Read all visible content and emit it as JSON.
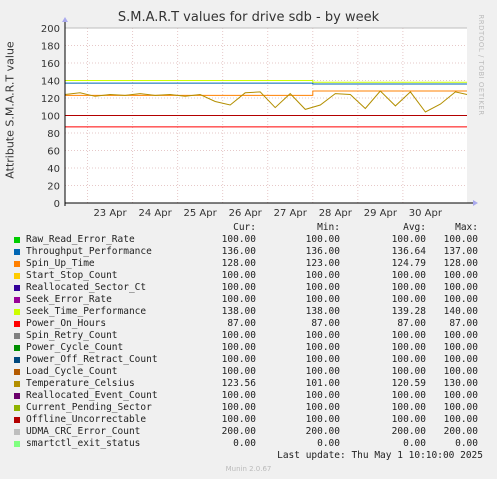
{
  "page": {
    "title": "S.M.A.R.T values for drive sdb - by week",
    "vertical_label": "Attribute S.M.A.R.T value",
    "watermark": "RRDTOOL / TOBI OETIKER",
    "footer": "Munin 2.0.67",
    "last_update": "Last update: Thu May  1 10:10:00 2025"
  },
  "legend": {
    "headers": [
      "Cur:",
      "Min:",
      "Avg:",
      "Max:"
    ],
    "rows": [
      {
        "name": "Raw_Read_Error_Rate",
        "color": "#00cc00",
        "cur": "100.00",
        "min": "100.00",
        "avg": "100.00",
        "max": "100.00"
      },
      {
        "name": "Throughput_Performance",
        "color": "#0066b3",
        "cur": "136.00",
        "min": "136.00",
        "avg": "136.64",
        "max": "137.00"
      },
      {
        "name": "Spin_Up_Time",
        "color": "#ff8000",
        "cur": "128.00",
        "min": "123.00",
        "avg": "124.79",
        "max": "128.00"
      },
      {
        "name": "Start_Stop_Count",
        "color": "#ffcc00",
        "cur": "100.00",
        "min": "100.00",
        "avg": "100.00",
        "max": "100.00"
      },
      {
        "name": "Reallocated_Sector_Ct",
        "color": "#330099",
        "cur": "100.00",
        "min": "100.00",
        "avg": "100.00",
        "max": "100.00"
      },
      {
        "name": "Seek_Error_Rate",
        "color": "#990099",
        "cur": "100.00",
        "min": "100.00",
        "avg": "100.00",
        "max": "100.00"
      },
      {
        "name": "Seek_Time_Performance",
        "color": "#ccff00",
        "cur": "138.00",
        "min": "138.00",
        "avg": "139.28",
        "max": "140.00"
      },
      {
        "name": "Power_On_Hours",
        "color": "#ff0000",
        "cur": "87.00",
        "min": "87.00",
        "avg": "87.00",
        "max": "87.00"
      },
      {
        "name": "Spin_Retry_Count",
        "color": "#808080",
        "cur": "100.00",
        "min": "100.00",
        "avg": "100.00",
        "max": "100.00"
      },
      {
        "name": "Power_Cycle_Count",
        "color": "#008f00",
        "cur": "100.00",
        "min": "100.00",
        "avg": "100.00",
        "max": "100.00"
      },
      {
        "name": "Power_Off_Retract_Count",
        "color": "#00487d",
        "cur": "100.00",
        "min": "100.00",
        "avg": "100.00",
        "max": "100.00"
      },
      {
        "name": "Load_Cycle_Count",
        "color": "#b35a00",
        "cur": "100.00",
        "min": "100.00",
        "avg": "100.00",
        "max": "100.00"
      },
      {
        "name": "Temperature_Celsius",
        "color": "#b38f00",
        "cur": "123.56",
        "min": "101.00",
        "avg": "120.59",
        "max": "130.00"
      },
      {
        "name": "Reallocated_Event_Count",
        "color": "#6b006b",
        "cur": "100.00",
        "min": "100.00",
        "avg": "100.00",
        "max": "100.00"
      },
      {
        "name": "Current_Pending_Sector",
        "color": "#8fb300",
        "cur": "100.00",
        "min": "100.00",
        "avg": "100.00",
        "max": "100.00"
      },
      {
        "name": "Offline_Uncorrectable",
        "color": "#b30000",
        "cur": "100.00",
        "min": "100.00",
        "avg": "100.00",
        "max": "100.00"
      },
      {
        "name": "UDMA_CRC_Error_Count",
        "color": "#bebebe",
        "cur": "200.00",
        "min": "200.00",
        "avg": "200.00",
        "max": "200.00"
      },
      {
        "name": "smartctl_exit_status",
        "color": "#80ff80",
        "cur": "0.00",
        "min": "0.00",
        "avg": "0.00",
        "max": "0.00"
      }
    ]
  },
  "chart_data": {
    "type": "line",
    "title": "S.M.A.R.T values for drive sdb - by week",
    "ylabel": "Attribute S.M.A.R.T value",
    "xlabel": "",
    "ylim": [
      0,
      200
    ],
    "yticks": [
      0,
      20,
      40,
      60,
      80,
      100,
      120,
      140,
      160,
      180,
      200
    ],
    "xlim": [
      "22 Apr 12:00",
      "1 May 10:10"
    ],
    "xticks": [
      "23 Apr",
      "24 Apr",
      "25 Apr",
      "26 Apr",
      "27 Apr",
      "28 Apr",
      "29 Apr",
      "30 Apr"
    ],
    "grid": true,
    "series": [
      {
        "name": "Raw_Read_Error_Rate",
        "color": "#00cc00",
        "x": [
          "22 Apr 12:00",
          "1 May 10:10"
        ],
        "values": [
          100,
          100
        ]
      },
      {
        "name": "Throughput_Performance",
        "color": "#0066b3",
        "x": [
          "22 Apr 12:00",
          "28 Apr 00:00",
          "28 Apr 00:00",
          "1 May 10:10"
        ],
        "values": [
          137,
          137,
          136,
          136
        ]
      },
      {
        "name": "Spin_Up_Time",
        "color": "#ff8000",
        "x": [
          "22 Apr 12:00",
          "28 Apr 00:00",
          "28 Apr 00:00",
          "1 May 10:10"
        ],
        "values": [
          123,
          123,
          128,
          128
        ]
      },
      {
        "name": "Start_Stop_Count",
        "color": "#ffcc00",
        "x": [
          "22 Apr 12:00",
          "1 May 10:10"
        ],
        "values": [
          100,
          100
        ]
      },
      {
        "name": "Reallocated_Sector_Ct",
        "color": "#330099",
        "x": [
          "22 Apr 12:00",
          "1 May 10:10"
        ],
        "values": [
          100,
          100
        ]
      },
      {
        "name": "Seek_Error_Rate",
        "color": "#990099",
        "x": [
          "22 Apr 12:00",
          "1 May 10:10"
        ],
        "values": [
          100,
          100
        ]
      },
      {
        "name": "Seek_Time_Performance",
        "color": "#ccff00",
        "x": [
          "22 Apr 12:00",
          "28 Apr 00:00",
          "28 Apr 00:00",
          "1 May 10:10"
        ],
        "values": [
          140,
          140,
          138,
          138
        ]
      },
      {
        "name": "Power_On_Hours",
        "color": "#ff0000",
        "x": [
          "22 Apr 12:00",
          "1 May 10:10"
        ],
        "values": [
          87,
          87
        ]
      },
      {
        "name": "Spin_Retry_Count",
        "color": "#808080",
        "x": [
          "22 Apr 12:00",
          "1 May 10:10"
        ],
        "values": [
          100,
          100
        ]
      },
      {
        "name": "Power_Cycle_Count",
        "color": "#008f00",
        "x": [
          "22 Apr 12:00",
          "1 May 10:10"
        ],
        "values": [
          100,
          100
        ]
      },
      {
        "name": "Power_Off_Retract_Count",
        "color": "#00487d",
        "x": [
          "22 Apr 12:00",
          "1 May 10:10"
        ],
        "values": [
          100,
          100
        ]
      },
      {
        "name": "Load_Cycle_Count",
        "color": "#b35a00",
        "x": [
          "22 Apr 12:00",
          "1 May 10:10"
        ],
        "values": [
          100,
          100
        ]
      },
      {
        "name": "Temperature_Celsius",
        "color": "#b38f00",
        "x": [
          "22 Apr 12:00",
          "22 Apr 20:00",
          "23 Apr 04:00",
          "23 Apr 12:00",
          "23 Apr 20:00",
          "24 Apr 04:00",
          "24 Apr 12:00",
          "24 Apr 20:00",
          "25 Apr 04:00",
          "25 Apr 12:00",
          "25 Apr 20:00",
          "26 Apr 04:00",
          "26 Apr 12:00",
          "26 Apr 20:00",
          "27 Apr 04:00",
          "27 Apr 12:00",
          "27 Apr 20:00",
          "28 Apr 04:00",
          "28 Apr 12:00",
          "28 Apr 20:00",
          "29 Apr 04:00",
          "29 Apr 12:00",
          "29 Apr 20:00",
          "30 Apr 04:00",
          "30 Apr 12:00",
          "30 Apr 20:00",
          "1 May 04:00",
          "1 May 10:10"
        ],
        "values": [
          124,
          126,
          122,
          124,
          123,
          125,
          123,
          124,
          122,
          124,
          116,
          112,
          126,
          127,
          109,
          125,
          107,
          112,
          125,
          124,
          108,
          128,
          111,
          127,
          104,
          113,
          127,
          124
        ]
      },
      {
        "name": "Reallocated_Event_Count",
        "color": "#6b006b",
        "x": [
          "22 Apr 12:00",
          "1 May 10:10"
        ],
        "values": [
          100,
          100
        ]
      },
      {
        "name": "Current_Pending_Sector",
        "color": "#8fb300",
        "x": [
          "22 Apr 12:00",
          "1 May 10:10"
        ],
        "values": [
          100,
          100
        ]
      },
      {
        "name": "Offline_Uncorrectable",
        "color": "#b30000",
        "x": [
          "22 Apr 12:00",
          "1 May 10:10"
        ],
        "values": [
          100,
          100
        ]
      },
      {
        "name": "UDMA_CRC_Error_Count",
        "color": "#bebebe",
        "x": [
          "22 Apr 12:00",
          "1 May 10:10"
        ],
        "values": [
          200,
          200
        ]
      },
      {
        "name": "smartctl_exit_status",
        "color": "#80ff80",
        "x": [
          "22 Apr 12:00",
          "1 May 10:10"
        ],
        "values": [
          0,
          0
        ]
      }
    ]
  }
}
